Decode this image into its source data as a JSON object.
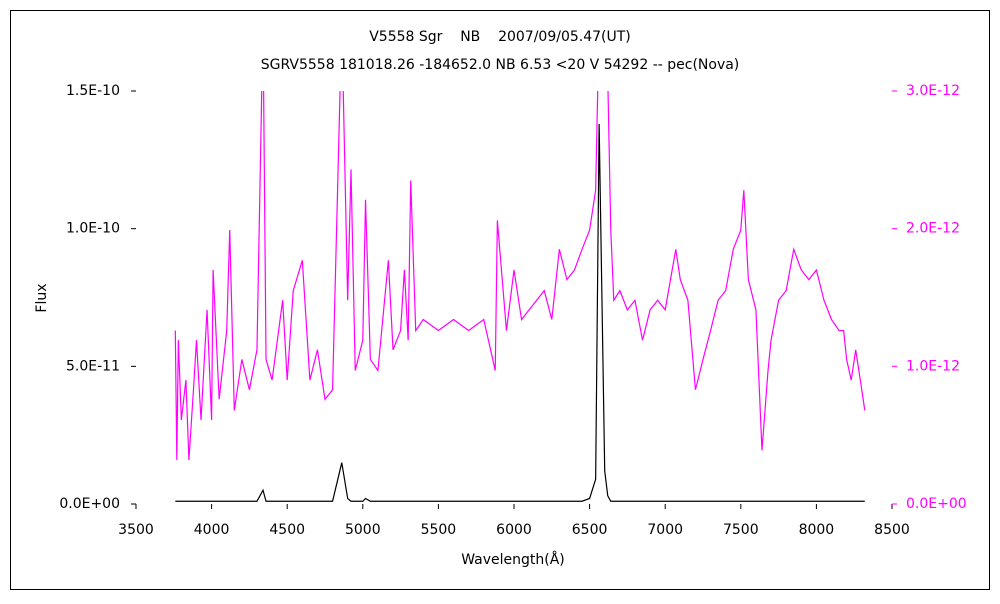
{
  "chart_data": {
    "type": "line",
    "title": "V5558 Sgr    NB    2007/09/05.47(UT)",
    "subtitle": "SGRV5558 181018.26 -184652.0 NB 6.53 <20 V 54292 -- pec(Nova)",
    "x_label": "Wavelength(Å)",
    "y_label": "Flux",
    "xlim": [
      3500,
      8500
    ],
    "xticks": [
      3500,
      4000,
      4500,
      5000,
      5500,
      6000,
      6500,
      7000,
      7500,
      8000,
      8500
    ],
    "ylim": [
      0,
      1.5e-10
    ],
    "yticks": [
      {
        "value": 0,
        "label": "0.0E+00"
      },
      {
        "value": 5e-11,
        "label": "5.0E-11"
      },
      {
        "value": 1e-10,
        "label": "1.0E-10"
      },
      {
        "value": 1.5e-10,
        "label": "1.5E-10"
      }
    ],
    "y2lim": [
      0,
      3e-12
    ],
    "y2ticks": [
      {
        "value": 0,
        "label": "0.0E+00"
      },
      {
        "value": 1e-12,
        "label": "1.0E-12"
      },
      {
        "value": 2e-12,
        "label": "2.0E-12"
      },
      {
        "value": 3e-12,
        "label": "3.0E-12"
      }
    ],
    "x": [
      3760,
      3770,
      3780,
      3800,
      3830,
      3850,
      3880,
      3900,
      3930,
      3970,
      4000,
      4010,
      4050,
      4100,
      4120,
      4150,
      4200,
      4250,
      4300,
      4340,
      4360,
      4400,
      4470,
      4500,
      4540,
      4600,
      4650,
      4700,
      4750,
      4800,
      4861,
      4900,
      4922,
      4950,
      5000,
      5018,
      5050,
      5100,
      5169,
      5200,
      5250,
      5275,
      5300,
      5317,
      5350,
      5400,
      5500,
      5600,
      5700,
      5800,
      5876,
      5890,
      5950,
      6000,
      6050,
      6100,
      6150,
      6200,
      6250,
      6300,
      6350,
      6400,
      6450,
      6500,
      6540,
      6563,
      6600,
      6620,
      6640,
      6660,
      6700,
      6750,
      6800,
      6850,
      6900,
      6950,
      7000,
      7070,
      7100,
      7150,
      7200,
      7250,
      7300,
      7350,
      7400,
      7450,
      7500,
      7520,
      7550,
      7600,
      7640,
      7680,
      7700,
      7750,
      7800,
      7850,
      7900,
      7950,
      8000,
      8050,
      8100,
      8150,
      8180,
      8200,
      8230,
      8260,
      8300,
      8320
    ],
    "series": [
      {
        "color": "#ff00ff",
        "axis": "y2",
        "values": [
          1.26e-12,
          3.2e-13,
          1.19e-12,
          6.1e-13,
          9e-13,
          3.2e-13,
          8.3e-13,
          1.19e-12,
          6.1e-13,
          1.41e-12,
          6.1e-13,
          1.7e-12,
          7.6e-13,
          1.26e-12,
          1.99e-12,
          6.8e-13,
          1.05e-12,
          8.3e-13,
          1.12e-12,
          3.5e-12,
          1.05e-12,
          9e-13,
          1.48e-12,
          9e-13,
          1.55e-12,
          1.77e-12,
          9e-13,
          1.12e-12,
          7.6e-13,
          8.3e-13,
          3.5e-12,
          1.48e-12,
          2.43e-12,
          9.7e-13,
          1.19e-12,
          2.21e-12,
          1.05e-12,
          9.7e-13,
          1.77e-12,
          1.12e-12,
          1.26e-12,
          1.7e-12,
          1.19e-12,
          2.35e-12,
          1.26e-12,
          1.34e-12,
          1.26e-12,
          1.34e-12,
          1.26e-12,
          1.34e-12,
          9.7e-13,
          2.06e-12,
          1.26e-12,
          1.7e-12,
          1.34e-12,
          1.41e-12,
          1.48e-12,
          1.55e-12,
          1.34e-12,
          1.85e-12,
          1.63e-12,
          1.7e-12,
          1.85e-12,
          1.99e-12,
          2.28e-12,
          3.5e-12,
          3.4e-12,
          3.1e-12,
          1.99e-12,
          1.48e-12,
          1.55e-12,
          1.41e-12,
          1.48e-12,
          1.19e-12,
          1.41e-12,
          1.48e-12,
          1.41e-12,
          1.85e-12,
          1.63e-12,
          1.48e-12,
          8.3e-13,
          1.05e-12,
          1.26e-12,
          1.48e-12,
          1.55e-12,
          1.85e-12,
          1.99e-12,
          2.28e-12,
          1.63e-12,
          1.41e-12,
          3.9e-13,
          9.7e-13,
          1.19e-12,
          1.48e-12,
          1.55e-12,
          1.85e-12,
          1.7e-12,
          1.63e-12,
          1.7e-12,
          1.48e-12,
          1.34e-12,
          1.26e-12,
          1.26e-12,
          1.05e-12,
          9e-13,
          1.12e-12,
          8.3e-13,
          6.8e-13
        ]
      },
      {
        "color": "#000000",
        "axis": "y",
        "values": [
          1e-12,
          1e-12,
          1e-12,
          1e-12,
          1e-12,
          1e-12,
          1e-12,
          1e-12,
          1e-12,
          1e-12,
          1e-12,
          1e-12,
          1e-12,
          1e-12,
          1e-12,
          1e-12,
          1e-12,
          1e-12,
          1e-12,
          5e-12,
          1e-12,
          1e-12,
          1e-12,
          1e-12,
          1e-12,
          1e-12,
          1e-12,
          1e-12,
          1e-12,
          1e-12,
          1.5e-11,
          2e-12,
          1e-12,
          1e-12,
          1e-12,
          2e-12,
          1e-12,
          1e-12,
          1e-12,
          1e-12,
          1e-12,
          1e-12,
          1e-12,
          1e-12,
          1e-12,
          1e-12,
          1e-12,
          1e-12,
          1e-12,
          1e-12,
          1e-12,
          1e-12,
          1e-12,
          1e-12,
          1e-12,
          1e-12,
          1e-12,
          1e-12,
          1e-12,
          1e-12,
          1e-12,
          1e-12,
          1e-12,
          2e-12,
          9e-12,
          1.38e-10,
          1.2e-11,
          3e-12,
          1e-12,
          1e-12,
          1e-12,
          1e-12,
          1e-12,
          1e-12,
          1e-12,
          1e-12,
          1e-12,
          1e-12,
          1e-12,
          1e-12,
          1e-12,
          1e-12,
          1e-12,
          1e-12,
          1e-12,
          1e-12,
          1e-12,
          1e-12,
          1e-12,
          1e-12,
          1e-12,
          1e-12,
          1e-12,
          1e-12,
          1e-12,
          1e-12,
          1e-12,
          1e-12,
          1e-12,
          1e-12,
          1e-12,
          1e-12,
          1e-12,
          1e-12,
          1e-12,
          1e-12,
          1e-12,
          1e-12
        ]
      }
    ]
  }
}
